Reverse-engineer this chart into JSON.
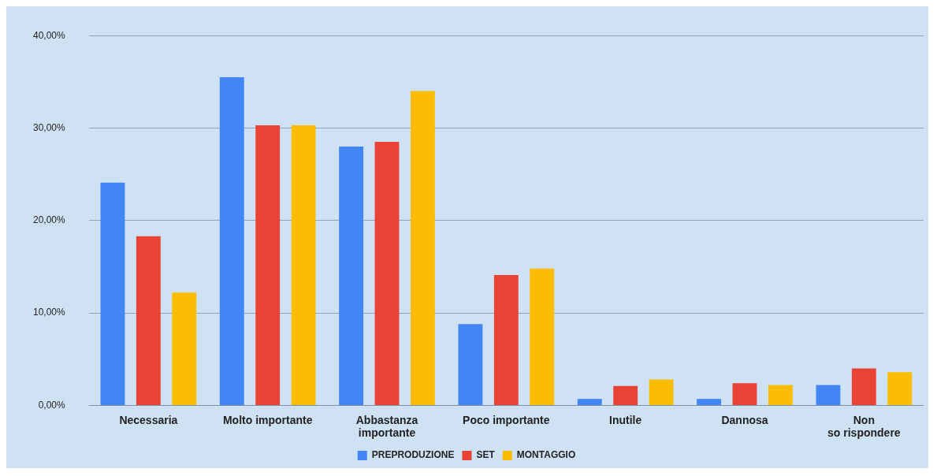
{
  "chart_data": {
    "type": "bar",
    "categories": [
      "Necessaria",
      "Molto importante",
      "Abbastanza importante",
      "Poco importante",
      "Inutile",
      "Dannosa",
      "Non so rispondere"
    ],
    "series": [
      {
        "name": "PREPRODUZIONE",
        "color": "#4285f4",
        "values": [
          24.1,
          35.5,
          28.0,
          8.8,
          0.7,
          0.7,
          2.2
        ]
      },
      {
        "name": "SET",
        "color": "#ea4335",
        "values": [
          18.3,
          30.3,
          28.5,
          14.1,
          2.1,
          2.4,
          4.0
        ]
      },
      {
        "name": "MONTAGGIO",
        "color": "#fbbc04",
        "values": [
          12.2,
          30.3,
          34.0,
          14.8,
          2.8,
          2.2,
          3.6
        ]
      }
    ],
    "ylim": [
      0,
      40
    ],
    "yticks": [
      {
        "value": 0,
        "label": "0,00%"
      },
      {
        "value": 10,
        "label": "10,00%"
      },
      {
        "value": 20,
        "label": "20,00%"
      },
      {
        "value": 30,
        "label": "30,00%"
      },
      {
        "value": 40,
        "label": "40,00%"
      }
    ],
    "grid": "y",
    "legend": "bottom"
  }
}
